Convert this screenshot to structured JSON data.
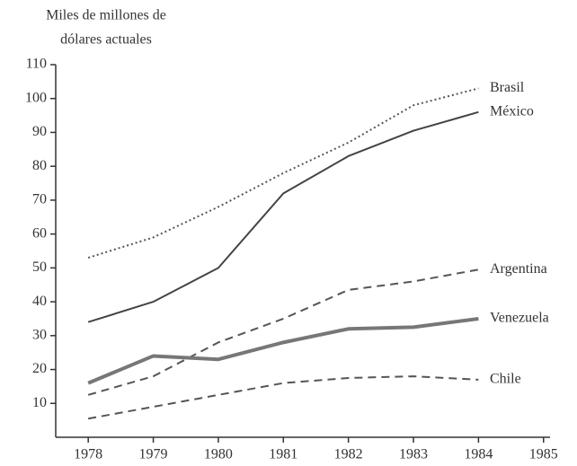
{
  "chart_data": {
    "type": "line",
    "y_label": [
      "Miles de millones de",
      "dólares actuales"
    ],
    "x": [
      1978,
      1979,
      1980,
      1981,
      1982,
      1983,
      1984
    ],
    "xlim": [
      1977.5,
      1985.1
    ],
    "xticks": [
      1978,
      1979,
      1980,
      1981,
      1982,
      1983,
      1984,
      1985
    ],
    "ylim": [
      0,
      110
    ],
    "yticks": [
      10,
      20,
      30,
      40,
      50,
      60,
      70,
      80,
      90,
      100,
      110
    ],
    "series": [
      {
        "name": "Brasil",
        "color": "#555555",
        "style": "dotted",
        "values": [
          53,
          59,
          68,
          78,
          87,
          98,
          103
        ]
      },
      {
        "name": "México",
        "color": "#444444",
        "style": "solid",
        "values": [
          34,
          40,
          50,
          72,
          83,
          90.5,
          96
        ]
      },
      {
        "name": "Argentina",
        "color": "#555555",
        "style": "dashed",
        "values": [
          12.5,
          18,
          28,
          35,
          43.5,
          46,
          49.5
        ]
      },
      {
        "name": "Venezuela",
        "color": "#777777",
        "style": "thick",
        "values": [
          16,
          24,
          23,
          28,
          32,
          32.5,
          35
        ]
      },
      {
        "name": "Chile",
        "color": "#555555",
        "style": "dashed",
        "values": [
          5.5,
          9,
          12.5,
          16,
          17.5,
          18,
          17
        ]
      }
    ]
  }
}
